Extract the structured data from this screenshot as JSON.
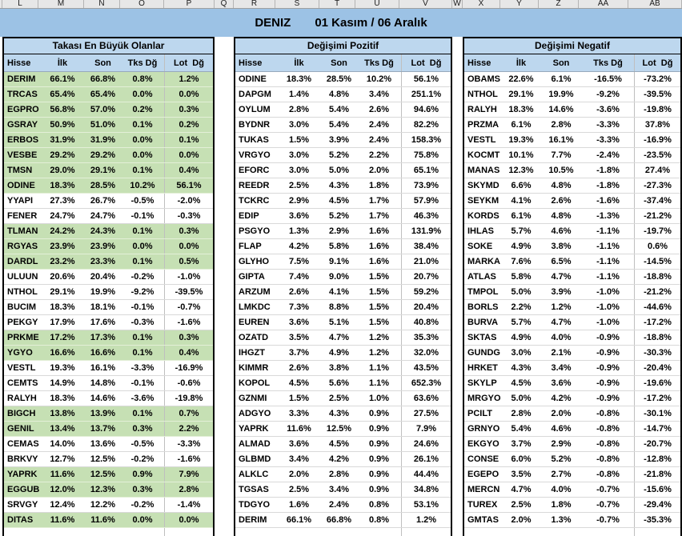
{
  "column_letters": [
    "L",
    "M",
    "N",
    "O",
    "P",
    "Q",
    "R",
    "S",
    "T",
    "U",
    "V",
    "W",
    "X",
    "Y",
    "Z",
    "AA",
    "AB"
  ],
  "title": {
    "brand": "DENIZ",
    "period": "01 Kasım / 06 Aralık"
  },
  "columns": [
    "Hisse",
    "İlk",
    "Son",
    "Tks Dğ",
    "Lot  Dğ"
  ],
  "colors": {
    "title_bg": "#9CC2E5",
    "header_bg": "#BDD7EE",
    "positive_row_bg": "#C6E0B4",
    "negative_row_bg": "#FFFFFF"
  },
  "tables": [
    {
      "name": "Takası En Büyük Olanlar",
      "rows": [
        {
          "cells": [
            "DERIM",
            "66.1%",
            "66.8%",
            "0.8%",
            "1.2%"
          ],
          "green": true
        },
        {
          "cells": [
            "TRCAS",
            "65.4%",
            "65.4%",
            "0.0%",
            "0.0%"
          ],
          "green": true
        },
        {
          "cells": [
            "EGPRO",
            "56.8%",
            "57.0%",
            "0.2%",
            "0.3%"
          ],
          "green": true
        },
        {
          "cells": [
            "GSRAY",
            "50.9%",
            "51.0%",
            "0.1%",
            "0.2%"
          ],
          "green": true
        },
        {
          "cells": [
            "ERBOS",
            "31.9%",
            "31.9%",
            "0.0%",
            "0.1%"
          ],
          "green": true
        },
        {
          "cells": [
            "VESBE",
            "29.2%",
            "29.2%",
            "0.0%",
            "0.0%"
          ],
          "green": true
        },
        {
          "cells": [
            "TMSN",
            "29.0%",
            "29.1%",
            "0.1%",
            "0.4%"
          ],
          "green": true
        },
        {
          "cells": [
            "ODINE",
            "18.3%",
            "28.5%",
            "10.2%",
            "56.1%"
          ],
          "green": true
        },
        {
          "cells": [
            "YYAPI",
            "27.3%",
            "26.7%",
            "-0.5%",
            "-2.0%"
          ]
        },
        {
          "cells": [
            "FENER",
            "24.7%",
            "24.7%",
            "-0.1%",
            "-0.3%"
          ]
        },
        {
          "cells": [
            "TLMAN",
            "24.2%",
            "24.3%",
            "0.1%",
            "0.3%"
          ],
          "green": true
        },
        {
          "cells": [
            "RGYAS",
            "23.9%",
            "23.9%",
            "0.0%",
            "0.0%"
          ],
          "green": true
        },
        {
          "cells": [
            "DARDL",
            "23.2%",
            "23.3%",
            "0.1%",
            "0.5%"
          ],
          "green": true
        },
        {
          "cells": [
            "ULUUN",
            "20.6%",
            "20.4%",
            "-0.2%",
            "-1.0%"
          ]
        },
        {
          "cells": [
            "NTHOL",
            "29.1%",
            "19.9%",
            "-9.2%",
            "-39.5%"
          ]
        },
        {
          "cells": [
            "BUCIM",
            "18.3%",
            "18.1%",
            "-0.1%",
            "-0.7%"
          ]
        },
        {
          "cells": [
            "PEKGY",
            "17.9%",
            "17.6%",
            "-0.3%",
            "-1.6%"
          ]
        },
        {
          "cells": [
            "PRKME",
            "17.2%",
            "17.3%",
            "0.1%",
            "0.3%"
          ],
          "green": true
        },
        {
          "cells": [
            "YGYO",
            "16.6%",
            "16.6%",
            "0.1%",
            "0.4%"
          ],
          "green": true
        },
        {
          "cells": [
            "VESTL",
            "19.3%",
            "16.1%",
            "-3.3%",
            "-16.9%"
          ]
        },
        {
          "cells": [
            "CEMTS",
            "14.9%",
            "14.8%",
            "-0.1%",
            "-0.6%"
          ]
        },
        {
          "cells": [
            "RALYH",
            "18.3%",
            "14.6%",
            "-3.6%",
            "-19.8%"
          ]
        },
        {
          "cells": [
            "BIGCH",
            "13.8%",
            "13.9%",
            "0.1%",
            "0.7%"
          ],
          "green": true
        },
        {
          "cells": [
            "GENIL",
            "13.4%",
            "13.7%",
            "0.3%",
            "2.2%"
          ],
          "green": true
        },
        {
          "cells": [
            "CEMAS",
            "14.0%",
            "13.6%",
            "-0.5%",
            "-3.3%"
          ]
        },
        {
          "cells": [
            "BRKVY",
            "12.7%",
            "12.5%",
            "-0.2%",
            "-1.6%"
          ]
        },
        {
          "cells": [
            "YAPRK",
            "11.6%",
            "12.5%",
            "0.9%",
            "7.9%"
          ],
          "green": true
        },
        {
          "cells": [
            "EGGUB",
            "12.0%",
            "12.3%",
            "0.3%",
            "2.8%"
          ],
          "green": true
        },
        {
          "cells": [
            "SRVGY",
            "12.4%",
            "12.2%",
            "-0.2%",
            "-1.4%"
          ]
        },
        {
          "cells": [
            "DITAS",
            "11.6%",
            "11.6%",
            "0.0%",
            "0.0%"
          ],
          "green": true
        }
      ]
    },
    {
      "name": "Değişimi Pozitif",
      "rows": [
        {
          "cells": [
            "ODINE",
            "18.3%",
            "28.5%",
            "10.2%",
            "56.1%"
          ]
        },
        {
          "cells": [
            "DAPGM",
            "1.4%",
            "4.8%",
            "3.4%",
            "251.1%"
          ]
        },
        {
          "cells": [
            "OYLUM",
            "2.8%",
            "5.4%",
            "2.6%",
            "94.6%"
          ]
        },
        {
          "cells": [
            "BYDNR",
            "3.0%",
            "5.4%",
            "2.4%",
            "82.2%"
          ]
        },
        {
          "cells": [
            "TUKAS",
            "1.5%",
            "3.9%",
            "2.4%",
            "158.3%"
          ]
        },
        {
          "cells": [
            "VRGYO",
            "3.0%",
            "5.2%",
            "2.2%",
            "75.8%"
          ]
        },
        {
          "cells": [
            "EFORC",
            "3.0%",
            "5.0%",
            "2.0%",
            "65.1%"
          ]
        },
        {
          "cells": [
            "REEDR",
            "2.5%",
            "4.3%",
            "1.8%",
            "73.9%"
          ]
        },
        {
          "cells": [
            "TCKRC",
            "2.9%",
            "4.5%",
            "1.7%",
            "57.9%"
          ]
        },
        {
          "cells": [
            "EDIP",
            "3.6%",
            "5.2%",
            "1.7%",
            "46.3%"
          ]
        },
        {
          "cells": [
            "PSGYO",
            "1.3%",
            "2.9%",
            "1.6%",
            "131.9%"
          ]
        },
        {
          "cells": [
            "FLAP",
            "4.2%",
            "5.8%",
            "1.6%",
            "38.4%"
          ]
        },
        {
          "cells": [
            "GLYHO",
            "7.5%",
            "9.1%",
            "1.6%",
            "21.0%"
          ]
        },
        {
          "cells": [
            "GIPTA",
            "7.4%",
            "9.0%",
            "1.5%",
            "20.7%"
          ]
        },
        {
          "cells": [
            "ARZUM",
            "2.6%",
            "4.1%",
            "1.5%",
            "59.2%"
          ]
        },
        {
          "cells": [
            "LMKDC",
            "7.3%",
            "8.8%",
            "1.5%",
            "20.4%"
          ]
        },
        {
          "cells": [
            "EUREN",
            "3.6%",
            "5.1%",
            "1.5%",
            "40.8%"
          ]
        },
        {
          "cells": [
            "OZATD",
            "3.5%",
            "4.7%",
            "1.2%",
            "35.3%"
          ]
        },
        {
          "cells": [
            "IHGZT",
            "3.7%",
            "4.9%",
            "1.2%",
            "32.0%"
          ]
        },
        {
          "cells": [
            "KIMMR",
            "2.6%",
            "3.8%",
            "1.1%",
            "43.5%"
          ]
        },
        {
          "cells": [
            "KOPOL",
            "4.5%",
            "5.6%",
            "1.1%",
            "652.3%"
          ]
        },
        {
          "cells": [
            "GZNMI",
            "1.5%",
            "2.5%",
            "1.0%",
            "63.6%"
          ]
        },
        {
          "cells": [
            "ADGYO",
            "3.3%",
            "4.3%",
            "0.9%",
            "27.5%"
          ]
        },
        {
          "cells": [
            "YAPRK",
            "11.6%",
            "12.5%",
            "0.9%",
            "7.9%"
          ]
        },
        {
          "cells": [
            "ALMAD",
            "3.6%",
            "4.5%",
            "0.9%",
            "24.6%"
          ]
        },
        {
          "cells": [
            "GLBMD",
            "3.4%",
            "4.2%",
            "0.9%",
            "26.1%"
          ]
        },
        {
          "cells": [
            "ALKLC",
            "2.0%",
            "2.8%",
            "0.9%",
            "44.4%"
          ]
        },
        {
          "cells": [
            "TGSAS",
            "2.5%",
            "3.4%",
            "0.9%",
            "34.8%"
          ]
        },
        {
          "cells": [
            "TDGYO",
            "1.6%",
            "2.4%",
            "0.8%",
            "53.1%"
          ]
        },
        {
          "cells": [
            "DERIM",
            "66.1%",
            "66.8%",
            "0.8%",
            "1.2%"
          ]
        }
      ]
    },
    {
      "name": "Değişimi Negatif",
      "rows": [
        {
          "cells": [
            "OBAMS",
            "22.6%",
            "6.1%",
            "-16.5%",
            "-73.2%"
          ]
        },
        {
          "cells": [
            "NTHOL",
            "29.1%",
            "19.9%",
            "-9.2%",
            "-39.5%"
          ]
        },
        {
          "cells": [
            "RALYH",
            "18.3%",
            "14.6%",
            "-3.6%",
            "-19.8%"
          ]
        },
        {
          "cells": [
            "PRZMA",
            "6.1%",
            "2.8%",
            "-3.3%",
            "37.8%"
          ]
        },
        {
          "cells": [
            "VESTL",
            "19.3%",
            "16.1%",
            "-3.3%",
            "-16.9%"
          ]
        },
        {
          "cells": [
            "KOCMT",
            "10.1%",
            "7.7%",
            "-2.4%",
            "-23.5%"
          ]
        },
        {
          "cells": [
            "MANAS",
            "12.3%",
            "10.5%",
            "-1.8%",
            "27.4%"
          ]
        },
        {
          "cells": [
            "SKYMD",
            "6.6%",
            "4.8%",
            "-1.8%",
            "-27.3%"
          ]
        },
        {
          "cells": [
            "SEYKM",
            "4.1%",
            "2.6%",
            "-1.6%",
            "-37.4%"
          ]
        },
        {
          "cells": [
            "KORDS",
            "6.1%",
            "4.8%",
            "-1.3%",
            "-21.2%"
          ]
        },
        {
          "cells": [
            "IHLAS",
            "5.7%",
            "4.6%",
            "-1.1%",
            "-19.7%"
          ]
        },
        {
          "cells": [
            "SOKE",
            "4.9%",
            "3.8%",
            "-1.1%",
            "0.6%"
          ]
        },
        {
          "cells": [
            "MARKA",
            "7.6%",
            "6.5%",
            "-1.1%",
            "-14.5%"
          ]
        },
        {
          "cells": [
            "ATLAS",
            "5.8%",
            "4.7%",
            "-1.1%",
            "-18.8%"
          ]
        },
        {
          "cells": [
            "TMPOL",
            "5.0%",
            "3.9%",
            "-1.0%",
            "-21.2%"
          ]
        },
        {
          "cells": [
            "BORLS",
            "2.2%",
            "1.2%",
            "-1.0%",
            "-44.6%"
          ]
        },
        {
          "cells": [
            "BURVA",
            "5.7%",
            "4.7%",
            "-1.0%",
            "-17.2%"
          ]
        },
        {
          "cells": [
            "SKTAS",
            "4.9%",
            "4.0%",
            "-0.9%",
            "-18.8%"
          ]
        },
        {
          "cells": [
            "GUNDG",
            "3.0%",
            "2.1%",
            "-0.9%",
            "-30.3%"
          ]
        },
        {
          "cells": [
            "HRKET",
            "4.3%",
            "3.4%",
            "-0.9%",
            "-20.4%"
          ]
        },
        {
          "cells": [
            "SKYLP",
            "4.5%",
            "3.6%",
            "-0.9%",
            "-19.6%"
          ]
        },
        {
          "cells": [
            "MRGYO",
            "5.0%",
            "4.2%",
            "-0.9%",
            "-17.2%"
          ]
        },
        {
          "cells": [
            "PCILT",
            "2.8%",
            "2.0%",
            "-0.8%",
            "-30.1%"
          ]
        },
        {
          "cells": [
            "GRNYO",
            "5.4%",
            "4.6%",
            "-0.8%",
            "-14.7%"
          ]
        },
        {
          "cells": [
            "EKGYO",
            "3.7%",
            "2.9%",
            "-0.8%",
            "-20.7%"
          ]
        },
        {
          "cells": [
            "CONSE",
            "6.0%",
            "5.2%",
            "-0.8%",
            "-12.8%"
          ]
        },
        {
          "cells": [
            "EGEPO",
            "3.5%",
            "2.7%",
            "-0.8%",
            "-21.8%"
          ]
        },
        {
          "cells": [
            "MERCN",
            "4.7%",
            "4.0%",
            "-0.7%",
            "-15.6%"
          ]
        },
        {
          "cells": [
            "TUREX",
            "2.5%",
            "1.8%",
            "-0.7%",
            "-29.4%"
          ]
        },
        {
          "cells": [
            "GMTAS",
            "2.0%",
            "1.3%",
            "-0.7%",
            "-35.3%"
          ]
        }
      ]
    }
  ]
}
